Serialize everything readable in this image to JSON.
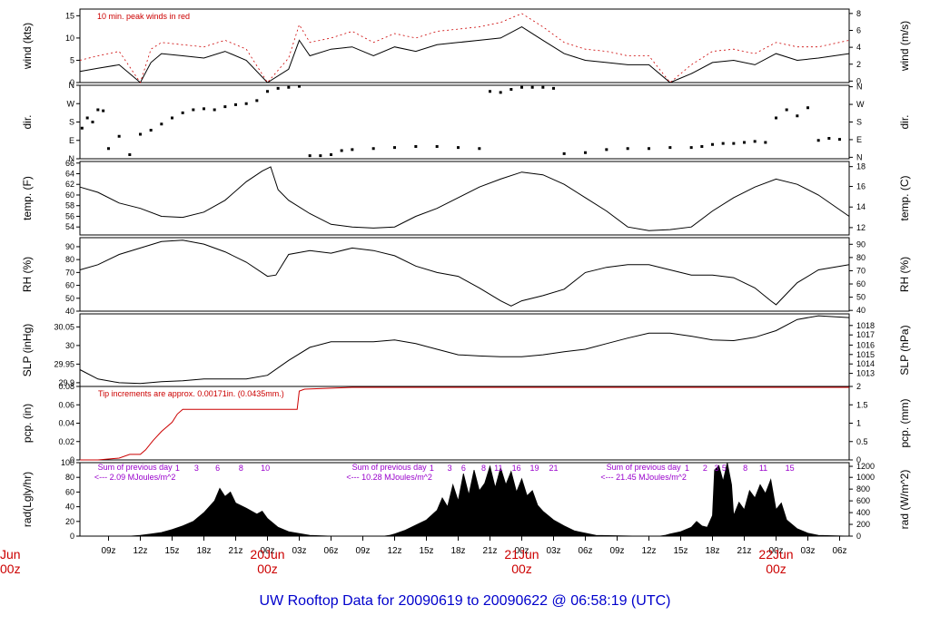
{
  "title": "UW Rooftop Data for 20090619  to  20090622 @ 06:58:19  (UTC)",
  "colors": {
    "trace": "#000000",
    "peak": "#cc0000",
    "annotation": "#cc0000",
    "day_marker": "#cc0000",
    "radiation_note": "#9900cc",
    "title": "#0000cc",
    "frame": "#000000"
  },
  "x_axis": {
    "tick_labels": [
      "09z",
      "12z",
      "15z",
      "18z",
      "21z",
      "00z",
      "03z",
      "06z",
      "09z",
      "12z",
      "15z",
      "18z",
      "21z",
      "00z",
      "03z",
      "06z",
      "09z",
      "12z",
      "15z",
      "18z",
      "21z",
      "00z",
      "03z",
      "06z"
    ],
    "label_hours": [
      9,
      12,
      15,
      18,
      21,
      24,
      27,
      30,
      33,
      36,
      39,
      42,
      45,
      48,
      51,
      54,
      57,
      60,
      63,
      66,
      69,
      72,
      75,
      78
    ],
    "day_markers": [
      {
        "date": "20Jun",
        "time": "00z",
        "hour": 24
      },
      {
        "date": "21Jun",
        "time": "00z",
        "hour": 48
      },
      {
        "date": "22Jun",
        "time": "00z",
        "hour": 72
      }
    ],
    "left_clipped_marker": {
      "date": "Jun",
      "time": "00z"
    },
    "range_hours": [
      6.3,
      78.9
    ]
  },
  "chart_data": [
    {
      "id": "wind",
      "type": "line",
      "left_label": "wind (kts)",
      "right_label": "wind (m/s)",
      "left_ticks": [
        0,
        5,
        10,
        15
      ],
      "right_ticks": [
        0,
        2,
        4,
        6,
        8
      ],
      "ylim": [
        0,
        16.5
      ],
      "annotation": "10 min. peak winds in red",
      "series": [
        {
          "name": "wind",
          "x": [
            6.3,
            8,
            10,
            12,
            13,
            14,
            16,
            18,
            20,
            22,
            24,
            26,
            27,
            28,
            30,
            32,
            34,
            36,
            38,
            40,
            42,
            44,
            46,
            48,
            50,
            52,
            54,
            56,
            58,
            60,
            62,
            64,
            66,
            68,
            70,
            72,
            74,
            76,
            78.9
          ],
          "y": [
            2.5,
            3.2,
            4.0,
            0.0,
            4.5,
            6.5,
            6.0,
            5.5,
            7.0,
            5.0,
            0.0,
            3.0,
            9.5,
            6.0,
            7.5,
            8.0,
            6.0,
            8.0,
            7.0,
            8.5,
            9.0,
            9.5,
            10.0,
            12.5,
            9.5,
            6.5,
            5.0,
            4.5,
            4.0,
            4.0,
            0.0,
            2.0,
            4.5,
            5.0,
            4.0,
            6.5,
            5.0,
            5.5,
            6.5
          ]
        },
        {
          "name": "peak",
          "x": [
            6.3,
            8,
            10,
            12,
            13,
            14,
            16,
            18,
            20,
            22,
            24,
            26,
            27,
            28,
            30,
            32,
            34,
            36,
            38,
            40,
            42,
            44,
            46,
            48,
            50,
            52,
            54,
            56,
            58,
            60,
            62,
            64,
            66,
            68,
            70,
            72,
            74,
            76,
            78.9
          ],
          "y": [
            5.0,
            6.0,
            7.0,
            0.0,
            7.5,
            9.0,
            8.5,
            8.0,
            9.5,
            7.5,
            0.0,
            5.5,
            13.0,
            9.0,
            10.0,
            11.5,
            9.0,
            11.0,
            10.0,
            11.5,
            12.0,
            12.5,
            13.5,
            15.5,
            12.5,
            9.0,
            7.5,
            7.0,
            6.0,
            6.0,
            0.0,
            4.0,
            7.0,
            7.5,
            6.5,
            9.0,
            8.0,
            8.0,
            9.5
          ]
        }
      ]
    },
    {
      "id": "dir",
      "type": "scatter",
      "left_label": "dir.",
      "right_label": "dir.",
      "left_ticks": [
        "N",
        "E",
        "S",
        "W",
        "N"
      ],
      "right_ticks": [
        "N",
        "E",
        "S",
        "W",
        "N"
      ],
      "ylim": [
        0,
        360
      ],
      "series": [
        {
          "name": "direction",
          "x": [
            6.5,
            7,
            7.5,
            8,
            8.5,
            9,
            10,
            11,
            12,
            13,
            14,
            15,
            16,
            17,
            18,
            19,
            20,
            21,
            22,
            23,
            24,
            25,
            26,
            27,
            28,
            29,
            30,
            31,
            32,
            34,
            36,
            38,
            40,
            42,
            44,
            45,
            46,
            47,
            48,
            49,
            50,
            51,
            52,
            54,
            56,
            58,
            60,
            62,
            64,
            65,
            66,
            67,
            68,
            69,
            70,
            71,
            72,
            73,
            74,
            75,
            76,
            77,
            78
          ],
          "y": [
            150,
            200,
            180,
            240,
            235,
            50,
            110,
            20,
            120,
            140,
            170,
            200,
            225,
            240,
            245,
            240,
            255,
            265,
            270,
            285,
            330,
            345,
            350,
            355,
            15,
            15,
            20,
            40,
            45,
            50,
            55,
            60,
            60,
            55,
            50,
            330,
            325,
            340,
            350,
            350,
            350,
            345,
            25,
            30,
            45,
            50,
            50,
            55,
            55,
            60,
            70,
            75,
            75,
            80,
            85,
            80,
            200,
            240,
            210,
            250,
            90,
            100,
            95
          ]
        }
      ]
    },
    {
      "id": "temp",
      "type": "line",
      "left_label": "temp. (F)",
      "right_label": "temp. (C)",
      "left_ticks": [
        54,
        56,
        58,
        60,
        62,
        64,
        66
      ],
      "right_ticks": [
        12,
        14,
        16,
        18
      ],
      "ylim": [
        52.5,
        66.3
      ],
      "series": [
        {
          "name": "temperature",
          "x": [
            6.3,
            8,
            10,
            12,
            14,
            16,
            18,
            20,
            22,
            23.5,
            24.3,
            25,
            26,
            28,
            30,
            32,
            34,
            36,
            38,
            40,
            42,
            44,
            46,
            48,
            50,
            52,
            54,
            56,
            58,
            60,
            62,
            64,
            66,
            68,
            70,
            72,
            74,
            76,
            78.9
          ],
          "y": [
            61.5,
            60.5,
            58.5,
            57.5,
            56.0,
            55.8,
            56.8,
            59.0,
            62.5,
            64.5,
            65.3,
            61.0,
            59.0,
            56.5,
            54.5,
            54.0,
            53.8,
            54.0,
            56.0,
            57.5,
            59.5,
            61.5,
            63.0,
            64.3,
            63.8,
            62.0,
            59.5,
            57.0,
            54.0,
            53.3,
            53.5,
            54.0,
            57.0,
            59.5,
            61.5,
            63.0,
            62.0,
            60.0,
            56.0
          ]
        }
      ]
    },
    {
      "id": "rh",
      "type": "line",
      "left_label": "RH (%)",
      "right_label": "RH (%)",
      "left_ticks": [
        40,
        50,
        60,
        70,
        80,
        90
      ],
      "right_ticks": [
        40,
        50,
        60,
        70,
        80,
        90
      ],
      "ylim": [
        40,
        97
      ],
      "series": [
        {
          "name": "relative humidity",
          "x": [
            6.3,
            8,
            10,
            12,
            14,
            16,
            18,
            20,
            22,
            24,
            24.8,
            26,
            28,
            30,
            32,
            34,
            36,
            38,
            40,
            42,
            44,
            46,
            47,
            48,
            50,
            52,
            54,
            56,
            58,
            60,
            62,
            64,
            66,
            68,
            70,
            71.5,
            72,
            74,
            76,
            78.9
          ],
          "y": [
            72,
            76,
            84,
            89,
            94,
            95,
            92,
            86,
            78,
            67,
            68,
            84,
            87,
            85,
            89,
            87,
            83,
            75,
            70,
            67,
            58,
            48,
            44,
            48,
            52,
            57,
            70,
            74,
            76,
            76,
            72,
            68,
            68,
            66,
            58,
            48,
            45,
            62,
            72,
            76
          ]
        }
      ]
    },
    {
      "id": "slp",
      "type": "line",
      "left_label": "SLP (inHg)",
      "right_label": "SLP (hPa)",
      "left_ticks": [
        29.9,
        29.95,
        30.0,
        30.05
      ],
      "right_ticks": [
        1013,
        1014,
        1015,
        1016,
        1017,
        1018
      ],
      "ylim": [
        29.89,
        30.085
      ],
      "series": [
        {
          "name": "pressure",
          "x": [
            6.3,
            8,
            10,
            12,
            14,
            16,
            18,
            20,
            22,
            24,
            26,
            28,
            30,
            32,
            34,
            36,
            38,
            40,
            42,
            44,
            46,
            48,
            50,
            52,
            54,
            56,
            58,
            60,
            62,
            64,
            66,
            68,
            70,
            72,
            74,
            76,
            78.9
          ],
          "y": [
            29.935,
            29.91,
            29.9,
            29.898,
            29.903,
            29.905,
            29.91,
            29.91,
            29.91,
            29.92,
            29.96,
            29.995,
            30.01,
            30.01,
            30.01,
            30.015,
            30.005,
            29.99,
            29.975,
            29.972,
            29.97,
            29.97,
            29.975,
            29.983,
            29.99,
            30.005,
            30.02,
            30.033,
            30.033,
            30.025,
            30.015,
            30.013,
            30.022,
            30.04,
            30.07,
            30.08,
            30.075
          ]
        }
      ]
    },
    {
      "id": "pcp",
      "type": "line",
      "left_label": "pcp. (in)",
      "right_label": "pcp. (mm)",
      "left_ticks": [
        0.0,
        0.02,
        0.04,
        0.06,
        0.08
      ],
      "right_ticks": [
        0,
        0.5,
        1,
        1.5,
        2
      ],
      "ylim": [
        0,
        0.08
      ],
      "annotation": "Tip increments are approx. 0.00171in. (0.0435mm.)",
      "series": [
        {
          "name": "precipitation",
          "x": [
            6.3,
            8,
            10,
            11,
            12,
            12.5,
            13.2,
            14,
            15,
            15.5,
            16,
            24,
            26.8,
            27,
            27.5,
            32,
            78.9
          ],
          "y": [
            0.0,
            0.0,
            0.002,
            0.006,
            0.006,
            0.011,
            0.021,
            0.031,
            0.041,
            0.05,
            0.055,
            0.055,
            0.055,
            0.075,
            0.077,
            0.079,
            0.079
          ]
        }
      ]
    },
    {
      "id": "rad",
      "type": "area",
      "left_label": "rad(Lgly/hr)",
      "right_label": "rad (W/m^2)",
      "left_ticks": [
        0,
        20,
        40,
        60,
        80,
        100
      ],
      "right_ticks": [
        0,
        200,
        400,
        600,
        800,
        1000,
        1200
      ],
      "ylim": [
        0,
        100
      ],
      "notes": [
        {
          "line1": "Sum of previous day",
          "line2": "<--- 2.09 MJoules/m^2",
          "hour": 11.5
        },
        {
          "line1": "Sum of previous day",
          "line2": "<--- 10.28 MJoules/m^2",
          "hour": 35.5
        },
        {
          "line1": "Sum of previous day",
          "line2": "<--- 21.45 MJoules/m^2",
          "hour": 59.5
        }
      ],
      "hour_labels": [
        {
          "text": "1",
          "hour": 15.5
        },
        {
          "text": "3",
          "hour": 17.3
        },
        {
          "text": "6",
          "hour": 19.3
        },
        {
          "text": "8",
          "hour": 21.5
        },
        {
          "text": "10",
          "hour": 23.8
        },
        {
          "text": "1",
          "hour": 39.5
        },
        {
          "text": "3",
          "hour": 41.2
        },
        {
          "text": "6",
          "hour": 42.5
        },
        {
          "text": "8",
          "hour": 44.4
        },
        {
          "text": "11",
          "hour": 45.8
        },
        {
          "text": "16",
          "hour": 47.5
        },
        {
          "text": "19",
          "hour": 49.2
        },
        {
          "text": "21",
          "hour": 51.0
        },
        {
          "text": "1",
          "hour": 63.6
        },
        {
          "text": "2",
          "hour": 65.3
        },
        {
          "text": "3",
          "hour": 66.4
        },
        {
          "text": "5",
          "hour": 67.1
        },
        {
          "text": "8",
          "hour": 69.1
        },
        {
          "text": "11",
          "hour": 70.8
        },
        {
          "text": "15",
          "hour": 73.3
        }
      ],
      "series": [
        {
          "name": "radiation",
          "x": [
            6.3,
            11,
            12,
            13,
            14,
            15,
            16,
            17,
            18,
            19,
            19.5,
            20,
            20.5,
            21,
            22,
            23,
            23.5,
            24,
            25,
            26,
            28,
            30,
            33,
            35,
            35.5,
            36,
            37,
            38,
            39,
            40,
            40.5,
            41,
            41.5,
            42,
            42.5,
            43,
            43.5,
            44,
            44.5,
            45,
            45.5,
            46,
            46.5,
            47,
            47.5,
            48,
            48.5,
            49,
            49.5,
            50,
            51,
            52,
            53,
            55,
            59,
            61,
            61.5,
            62,
            63,
            64,
            64.5,
            65,
            65.5,
            66,
            66.2,
            66.6,
            67,
            67.4,
            67.8,
            68,
            68.5,
            69,
            69.5,
            70,
            70.5,
            71,
            71.5,
            72,
            72.5,
            73,
            74,
            75,
            76,
            78.9
          ],
          "y": [
            0,
            0,
            1,
            3,
            5,
            9,
            14,
            20,
            32,
            48,
            65,
            54,
            60,
            45,
            38,
            30,
            34,
            24,
            12,
            6,
            1,
            0,
            0,
            0,
            1,
            3,
            8,
            15,
            22,
            35,
            52,
            40,
            70,
            48,
            85,
            56,
            90,
            62,
            72,
            95,
            66,
            93,
            70,
            88,
            60,
            78,
            55,
            62,
            42,
            34,
            22,
            14,
            7,
            1,
            0,
            0,
            1,
            3,
            6,
            12,
            20,
            14,
            12,
            28,
            90,
            96,
            75,
            100,
            70,
            28,
            46,
            36,
            62,
            52,
            70,
            58,
            77,
            36,
            45,
            22,
            10,
            4,
            1,
            0
          ]
        }
      ]
    }
  ]
}
